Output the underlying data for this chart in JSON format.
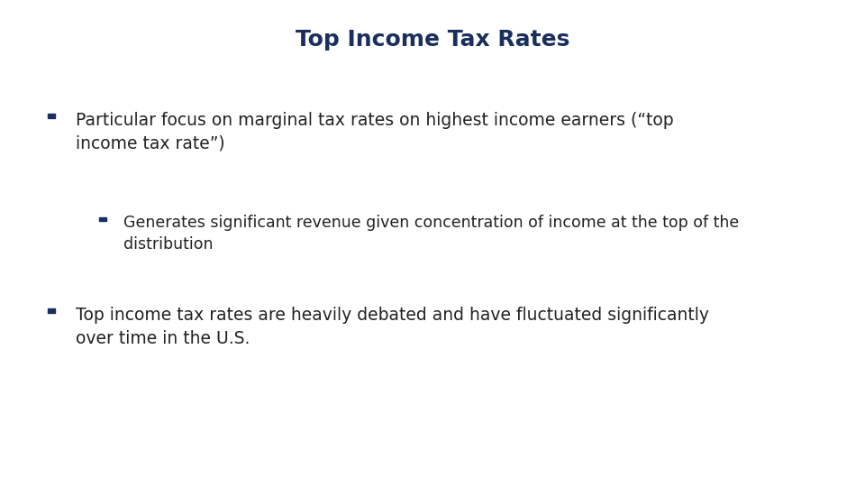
{
  "title": "Top Income Tax Rates",
  "title_color": "#1a2f5e",
  "title_fontsize": 18,
  "background_color": "#ffffff",
  "bullet1_line1": "Particular focus on marginal tax rates on highest income earners (“top",
  "bullet1_line2": "income tax rate”)",
  "sub_bullet1_line1": "Generates significant revenue given concentration of income at the top of the",
  "sub_bullet1_line2": "distribution",
  "bullet2_line1": "Top income tax rates are heavily debated and have fluctuated significantly",
  "bullet2_line2": "over time in the U.S.",
  "text_color": "#222222",
  "bullet_color": "#1a2f5e",
  "main_fontsize": 13.5,
  "sub_fontsize": 12.5,
  "fig_width": 9.6,
  "fig_height": 5.4,
  "dpi": 100
}
